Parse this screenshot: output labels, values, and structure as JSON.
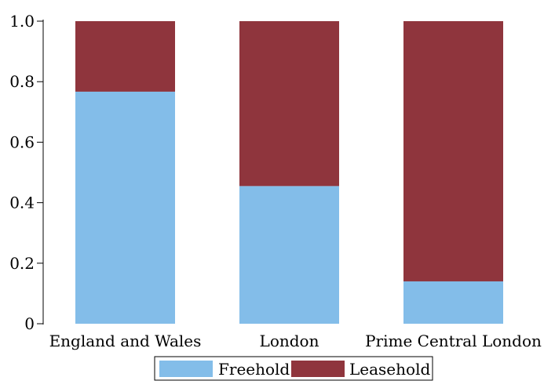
{
  "chart_data": {
    "type": "bar",
    "stacked": true,
    "title": "",
    "xlabel": "",
    "ylabel": "",
    "ylim": [
      0,
      1.0
    ],
    "yticks": [
      {
        "value": 0,
        "label": "0"
      },
      {
        "value": 0.2,
        "label": "0.2"
      },
      {
        "value": 0.4,
        "label": "0.4"
      },
      {
        "value": 0.6,
        "label": "0.6"
      },
      {
        "value": 0.8,
        "label": "0.8"
      },
      {
        "value": 1.0,
        "label": "1.0"
      }
    ],
    "categories": [
      "England and Wales",
      "London",
      "Prime Central London"
    ],
    "series": [
      {
        "name": "Freehold",
        "color": "#83BDE9",
        "values": [
          0.767,
          0.455,
          0.14
        ]
      },
      {
        "name": "Leasehold",
        "color": "#8F353D",
        "values": [
          0.233,
          0.545,
          0.86
        ]
      }
    ],
    "grid": false,
    "legend_position": "bottom"
  }
}
